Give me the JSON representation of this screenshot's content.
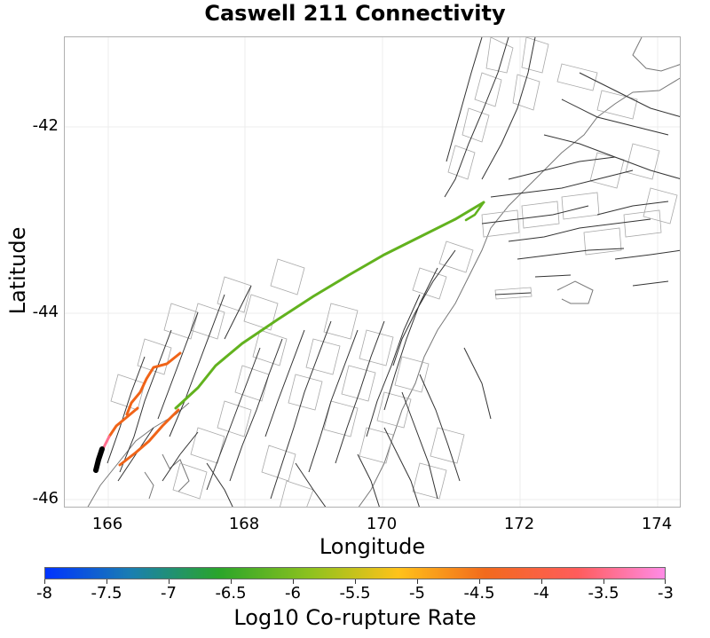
{
  "title": "Caswell 211 Connectivity",
  "x_axis": {
    "label": "Longitude",
    "ticks": [
      "166",
      "168",
      "170",
      "172",
      "174"
    ]
  },
  "y_axis": {
    "label": "Latitude",
    "ticks": [
      "-42",
      "-44",
      "-46"
    ]
  },
  "colorbar": {
    "label": "Log10 Co-rupture Rate",
    "ticks": [
      "-8",
      "-7.5",
      "-7",
      "-6.5",
      "-6",
      "-5.5",
      "-5",
      "-4.5",
      "-4",
      "-3.5",
      "-3"
    ]
  },
  "colors": {
    "fault": "#333333",
    "trace_box": "#a8a8a8",
    "coast": "#777777",
    "green_segment": "#62b21e",
    "orange_segment": "#f06418",
    "pink_segment": "#ff6f8f",
    "source_segment": "#000000",
    "grid": "#ececec"
  },
  "icons": {}
}
